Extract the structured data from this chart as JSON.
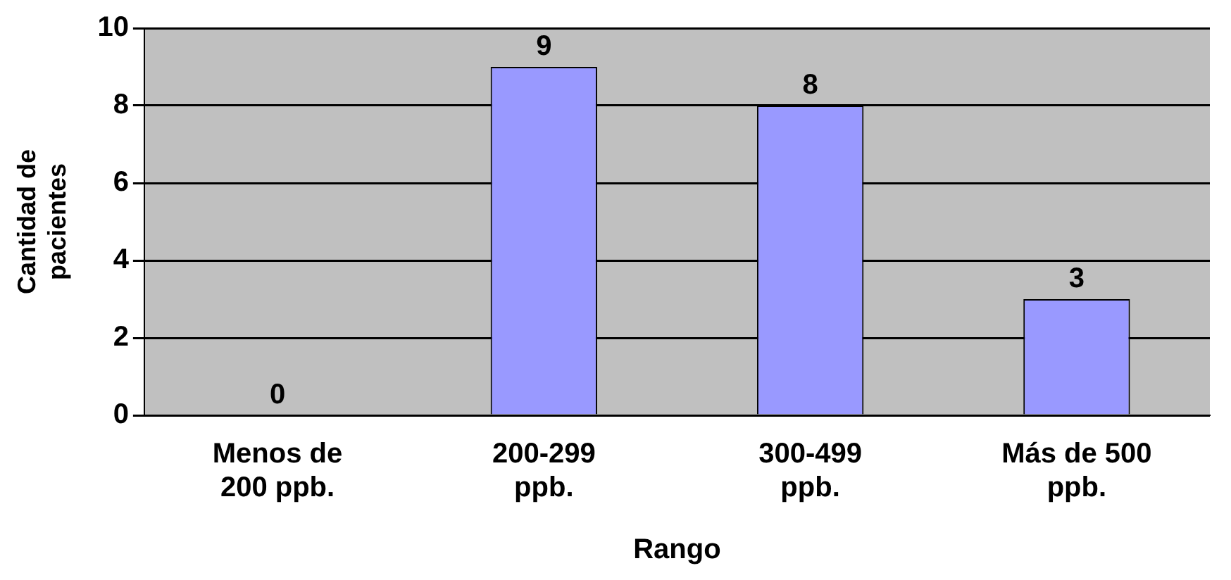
{
  "chart_data": {
    "type": "bar",
    "categories": [
      "Menos de 200 ppb.",
      "200-299 ppb.",
      "300-499 ppb.",
      "Más de 500 ppb."
    ],
    "values": [
      0,
      9,
      8,
      3
    ],
    "color": "#9999ff",
    "ylim": [
      0,
      10
    ],
    "yticks": [
      0,
      2,
      4,
      6,
      8,
      10
    ],
    "grid": "y",
    "data_labels": true,
    "xlabel": "Rango",
    "ylabel": "Cantidad de pacientes",
    "legend": false
  }
}
